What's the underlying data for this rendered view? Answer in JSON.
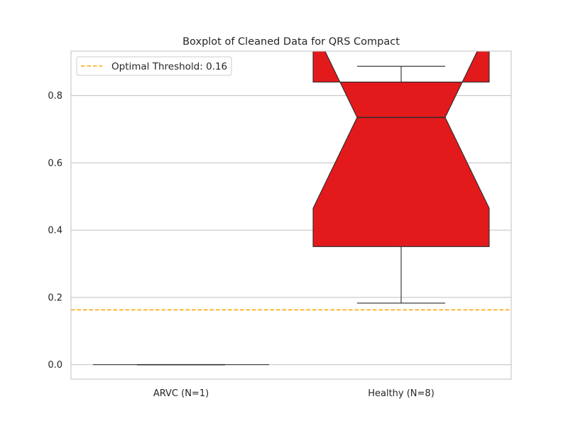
{
  "chart_data": {
    "type": "boxplot",
    "title": "Boxplot of Cleaned Data for QRS Compact",
    "xlabel": "",
    "ylabel": "",
    "ylim": [
      -0.043,
      0.932
    ],
    "yticks": [
      0.0,
      0.2,
      0.4,
      0.6,
      0.8
    ],
    "ytick_labels": [
      "0.0",
      "0.2",
      "0.4",
      "0.6",
      "0.8"
    ],
    "grid": true,
    "notched": true,
    "categories": [
      "ARVC (N=1)",
      "Healthy (N=8)"
    ],
    "boxes": [
      {
        "category": "ARVC (N=1)",
        "whisker_low": 0.0,
        "q1": 0.0,
        "median": 0.0,
        "q3": 0.0,
        "whisker_high": 0.0,
        "notch_low": 0.0,
        "notch_high": 0.0,
        "color": "#e31a1c"
      },
      {
        "category": "Healthy (N=8)",
        "whisker_low": 0.183,
        "q1": 0.351,
        "median": 0.735,
        "q3": 0.84,
        "whisker_high": 0.887,
        "notch_low": 0.465,
        "notch_high": 1.005,
        "color": "#e31a1c"
      }
    ],
    "threshold": {
      "value": 0.163,
      "label": "Optimal Threshold: 0.16",
      "color": "#ffa500",
      "style": "dashed"
    },
    "legend_position": "upper-left"
  }
}
